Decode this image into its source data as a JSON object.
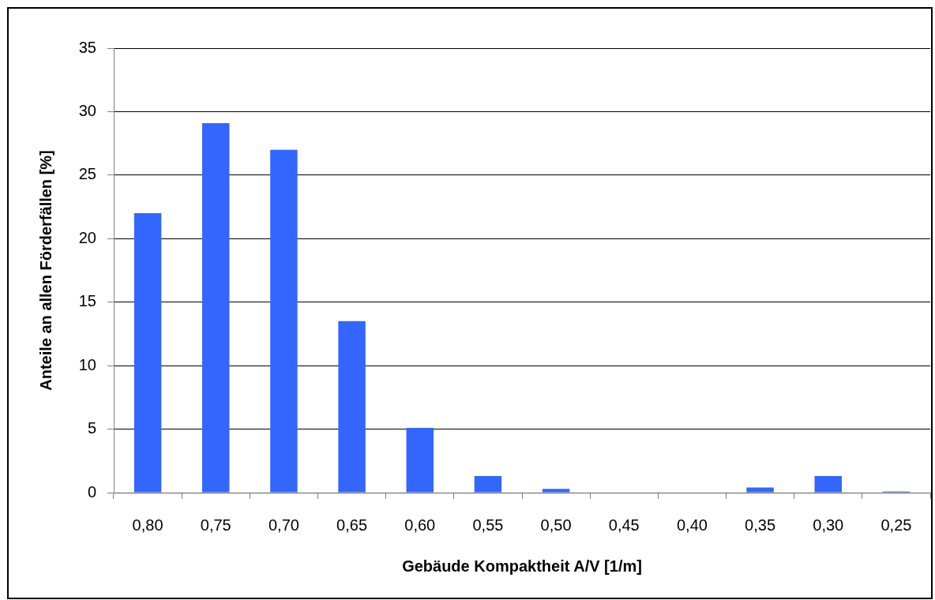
{
  "chart_data": {
    "type": "bar",
    "xlabel": "Gebäude Kompaktheit A/V [1/m]",
    "ylabel": "Anteile an allen Förderfällen [%]",
    "categories": [
      "0,80",
      "0,75",
      "0,70",
      "0,65",
      "0,60",
      "0,55",
      "0,50",
      "0,45",
      "0,40",
      "0,35",
      "0,30",
      "0,25"
    ],
    "values": [
      22,
      29.1,
      27,
      13.5,
      5.1,
      1.3,
      0.3,
      0,
      0,
      0.4,
      1.3,
      0.1
    ],
    "color": "#3366ff",
    "ylim": [
      0,
      35
    ],
    "yticks": [
      0,
      5,
      10,
      15,
      20,
      25,
      30,
      35
    ],
    "grid": "y"
  }
}
